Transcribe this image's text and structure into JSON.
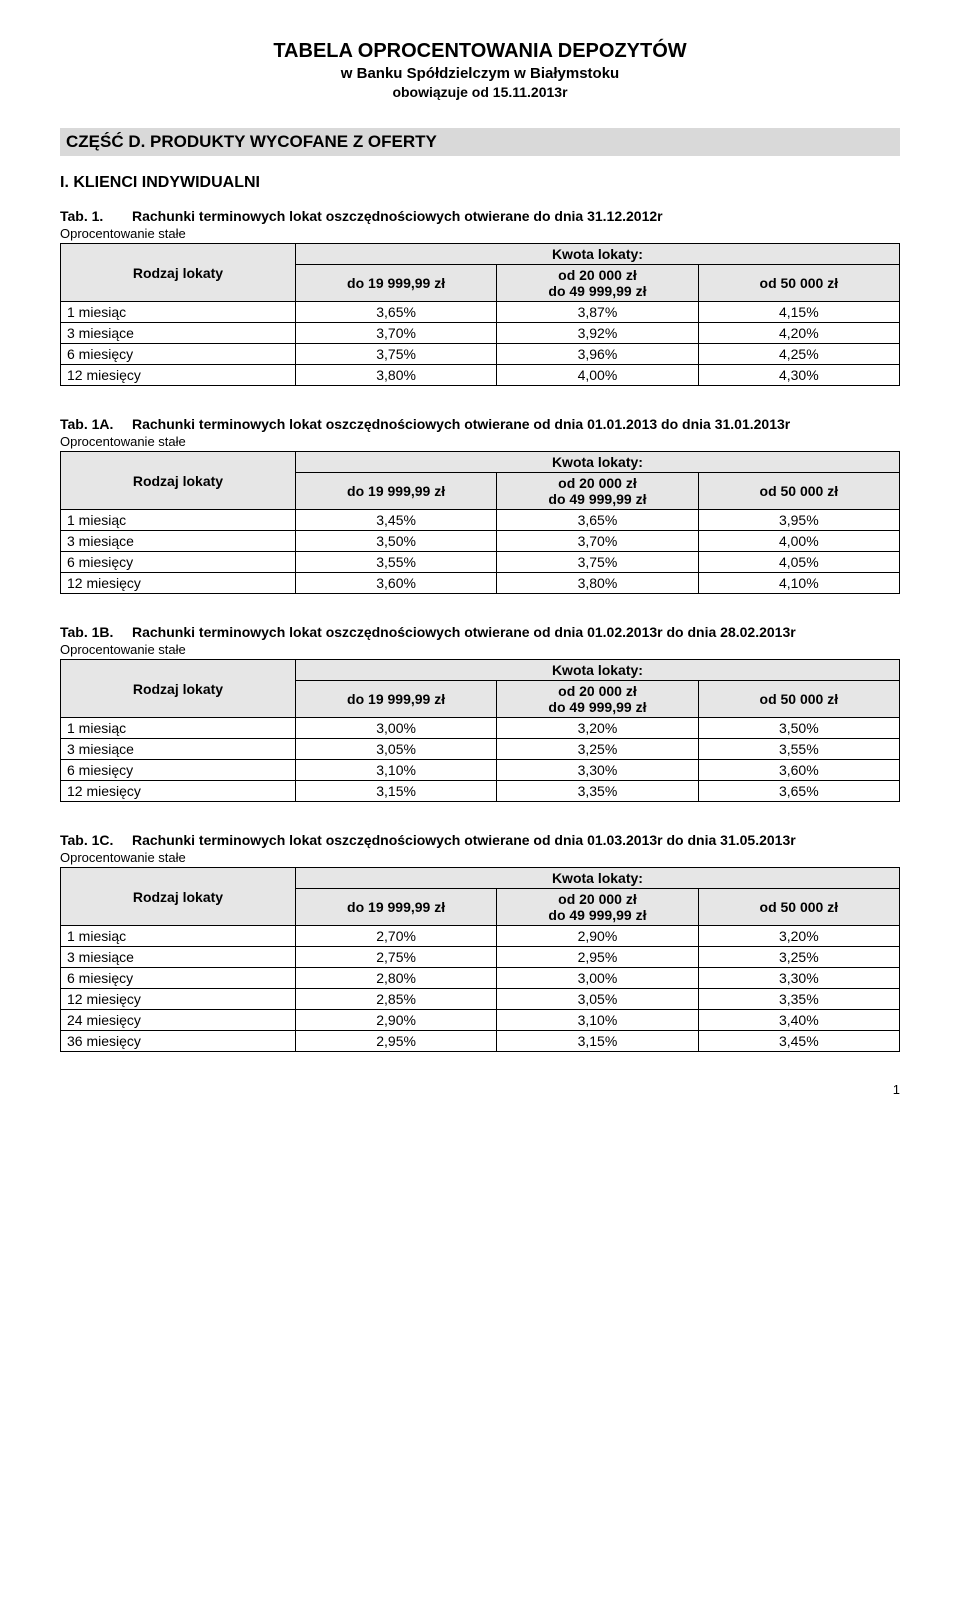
{
  "doc": {
    "title": "TABELA OPROCENTOWANIA DEPOZYTÓW",
    "subtitle": "w Banku Spółdzielczym w Białymstoku",
    "effective": "obowiązuje od 15.11.2013r",
    "section_bar": "CZĘŚĆ D. PRODUKTY WYCOFANE Z OFERTY",
    "section_heading": "I.    KLIENCI INDYWIDUALNI",
    "interest_type_label": "Oprocentowanie stałe",
    "page_number": "1"
  },
  "header_labels": {
    "rodzaj": "Rodzaj lokaty",
    "kwota": "Kwota lokaty:",
    "range1": "do 19 999,99 zł",
    "range2_line1": "od  20 000 zł",
    "range2_line2": "do 49 999,99 zł",
    "range3": "od  50 000 zł"
  },
  "tables": {
    "t1": {
      "no": "Tab. 1.",
      "caption": "Rachunki terminowych lokat oszczędnościowych otwierane do dnia 31.12.2012r",
      "rows": [
        {
          "label": "1 miesiąc",
          "c1": "3,65%",
          "c2": "3,87%",
          "c3": "4,15%"
        },
        {
          "label": "3 miesiące",
          "c1": "3,70%",
          "c2": "3,92%",
          "c3": "4,20%"
        },
        {
          "label": "6 miesięcy",
          "c1": "3,75%",
          "c2": "3,96%",
          "c3": "4,25%"
        },
        {
          "label": "12 miesięcy",
          "c1": "3,80%",
          "c2": "4,00%",
          "c3": "4,30%"
        }
      ]
    },
    "t1A": {
      "no": "Tab. 1A.",
      "caption": "Rachunki terminowych lokat oszczędnościowych otwierane od dnia 01.01.2013 do dnia 31.01.2013r",
      "rows": [
        {
          "label": "1 miesiąc",
          "c1": "3,45%",
          "c2": "3,65%",
          "c3": "3,95%"
        },
        {
          "label": "3 miesiące",
          "c1": "3,50%",
          "c2": "3,70%",
          "c3": "4,00%"
        },
        {
          "label": "6 miesięcy",
          "c1": "3,55%",
          "c2": "3,75%",
          "c3": "4,05%"
        },
        {
          "label": "12 miesięcy",
          "c1": "3,60%",
          "c2": "3,80%",
          "c3": "4,10%"
        }
      ]
    },
    "t1B": {
      "no": "Tab. 1B.",
      "caption": "Rachunki terminowych lokat oszczędnościowych otwierane od dnia 01.02.2013r do dnia 28.02.2013r",
      "rows": [
        {
          "label": "1 miesiąc",
          "c1": "3,00%",
          "c2": "3,20%",
          "c3": "3,50%"
        },
        {
          "label": "3 miesiące",
          "c1": "3,05%",
          "c2": "3,25%",
          "c3": "3,55%"
        },
        {
          "label": "6 miesięcy",
          "c1": "3,10%",
          "c2": "3,30%",
          "c3": "3,60%"
        },
        {
          "label": "12 miesięcy",
          "c1": "3,15%",
          "c2": "3,35%",
          "c3": "3,65%"
        }
      ]
    },
    "t1C": {
      "no": "Tab. 1C.",
      "caption": "Rachunki terminowych lokat oszczędnościowych otwierane od dnia 01.03.2013r do dnia 31.05.2013r",
      "rows": [
        {
          "label": "1 miesiąc",
          "c1": "2,70%",
          "c2": "2,90%",
          "c3": "3,20%"
        },
        {
          "label": "3 miesiące",
          "c1": "2,75%",
          "c2": "2,95%",
          "c3": "3,25%"
        },
        {
          "label": "6 miesięcy",
          "c1": "2,80%",
          "c2": "3,00%",
          "c3": "3,30%"
        },
        {
          "label": "12 miesięcy",
          "c1": "2,85%",
          "c2": "3,05%",
          "c3": "3,35%"
        },
        {
          "label": "24 miesięcy",
          "c1": "2,90%",
          "c2": "3,10%",
          "c3": "3,40%"
        },
        {
          "label": "36 miesięcy",
          "c1": "2,95%",
          "c2": "3,15%",
          "c3": "3,45%"
        }
      ]
    }
  }
}
